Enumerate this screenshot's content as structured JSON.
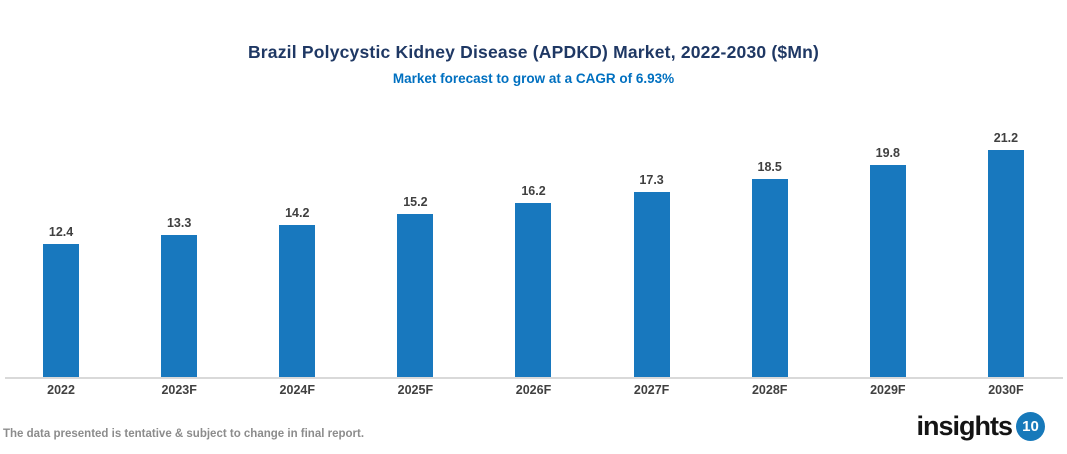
{
  "page": {
    "footnote": "The data presented is tentative & subject to change in final report.",
    "logo": {
      "text": "insights",
      "badge": "10"
    }
  },
  "colors": {
    "title": "#1F3864",
    "subtitle": "#0070C0",
    "bar": "#1878BE",
    "axis_line": "#D9D9D9",
    "value_label": "#404040",
    "category_label": "#404040",
    "footnote": "#8C8C8C",
    "logo_badge_bg": "#1779BA"
  },
  "chart_data": {
    "type": "bar",
    "title": "Brazil Polycystic Kidney Disease (APDKD) Market, 2022-2030 ($Mn)",
    "subtitle": "Market forecast to grow at a CAGR of 6.93%",
    "categories": [
      "2022",
      "2023F",
      "2024F",
      "2025F",
      "2026F",
      "2027F",
      "2028F",
      "2029F",
      "2030F"
    ],
    "values": [
      12.4,
      13.3,
      14.2,
      15.2,
      16.2,
      17.3,
      18.5,
      19.8,
      21.2
    ],
    "value_labels": [
      "12.4",
      "13.3",
      "14.2",
      "15.2",
      "16.2",
      "17.3",
      "18.5",
      "19.8",
      "21.2"
    ],
    "xlabel": "",
    "ylabel": "",
    "ylim": [
      0,
      22
    ],
    "grid": false,
    "legend": false,
    "value_labels_shown": true
  }
}
